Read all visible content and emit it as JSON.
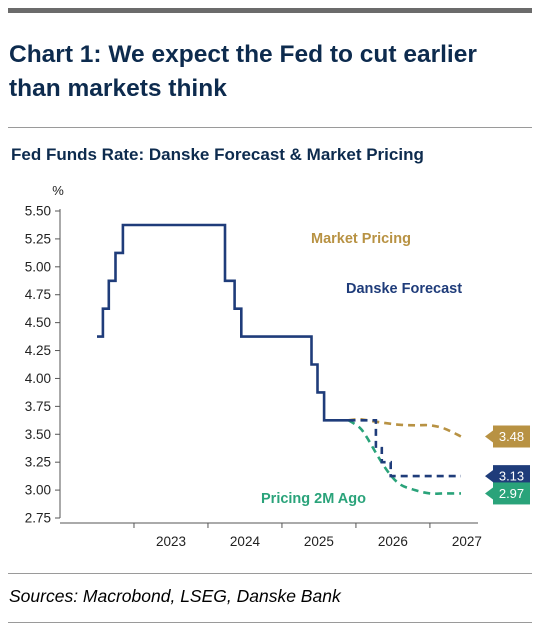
{
  "header": {
    "title": "Chart 1: We expect the Fed to cut earlier than markets think",
    "subtitle": "Fed Funds Rate: Danske Forecast & Market Pricing"
  },
  "footer": {
    "sources": "Sources: Macrobond, LSEG, Danske Bank"
  },
  "colors": {
    "danske": "#1f3c7a",
    "market": "#b89243",
    "pricing2m": "#2aa37a",
    "title": "#0d2b4e"
  },
  "chart_data": {
    "type": "line",
    "title": "Fed Funds Rate: Danske Forecast & Market Pricing",
    "ylabel": "%",
    "xlabel": "",
    "ylim": [
      2.75,
      5.5
    ],
    "yticks": [
      "5.50",
      "5.25",
      "5.00",
      "4.75",
      "4.50",
      "4.25",
      "4.00",
      "3.75",
      "3.50",
      "3.25",
      "3.00",
      "2.75"
    ],
    "xlim": [
      2022.0,
      2027.65
    ],
    "xticks": [
      "2023",
      "2024",
      "2025",
      "2026",
      "2027"
    ],
    "grid": false,
    "legend": "inline labels",
    "series": [
      {
        "name": "Danske Forecast",
        "style": "solid-then-dashed",
        "step": true,
        "solid_x": [
          2022.5,
          2022.58,
          2022.58,
          2022.66,
          2022.66,
          2022.75,
          2022.75,
          2022.85,
          2022.85,
          2023.05,
          2023.05,
          2024.23,
          2024.23,
          2024.36,
          2024.36,
          2024.45,
          2024.45,
          2025.4,
          2025.4,
          2025.48,
          2025.48,
          2025.57,
          2025.57,
          2025.9
        ],
        "solid_y": [
          4.375,
          4.375,
          4.625,
          4.625,
          4.875,
          4.875,
          5.125,
          5.125,
          5.375,
          5.375,
          5.375,
          5.375,
          4.875,
          4.875,
          4.625,
          4.625,
          4.375,
          4.375,
          4.125,
          4.125,
          3.875,
          3.875,
          3.625,
          3.625
        ],
        "dashed_x": [
          2025.9,
          2026.27,
          2026.27,
          2026.35,
          2026.35,
          2026.47,
          2026.47,
          2027.42
        ],
        "dashed_y": [
          3.625,
          3.625,
          3.375,
          3.375,
          3.25,
          3.25,
          3.125,
          3.125
        ],
        "end_label": "3.13"
      },
      {
        "name": "Market Pricing",
        "style": "dashed",
        "x": [
          2025.9,
          2026.05,
          2026.2,
          2026.4,
          2026.6,
          2026.8,
          2027.0,
          2027.2,
          2027.42
        ],
        "y": [
          3.625,
          3.635,
          3.62,
          3.6,
          3.585,
          3.58,
          3.58,
          3.55,
          3.48
        ],
        "end_label": "3.48"
      },
      {
        "name": "Pricing 2M Ago",
        "style": "dashed",
        "x": [
          2025.9,
          2026.05,
          2026.15,
          2026.3,
          2026.45,
          2026.6,
          2026.8,
          2027.0,
          2027.2,
          2027.42
        ],
        "y": [
          3.625,
          3.56,
          3.47,
          3.3,
          3.15,
          3.05,
          3.0,
          2.97,
          2.97,
          2.97
        ],
        "end_label": "2.97"
      }
    ],
    "annotations": [
      {
        "text": "Market Pricing",
        "series": "Market Pricing"
      },
      {
        "text": "Danske Forecast",
        "series": "Danske Forecast"
      },
      {
        "text": "Pricing 2M Ago",
        "series": "Pricing 2M Ago"
      }
    ]
  }
}
